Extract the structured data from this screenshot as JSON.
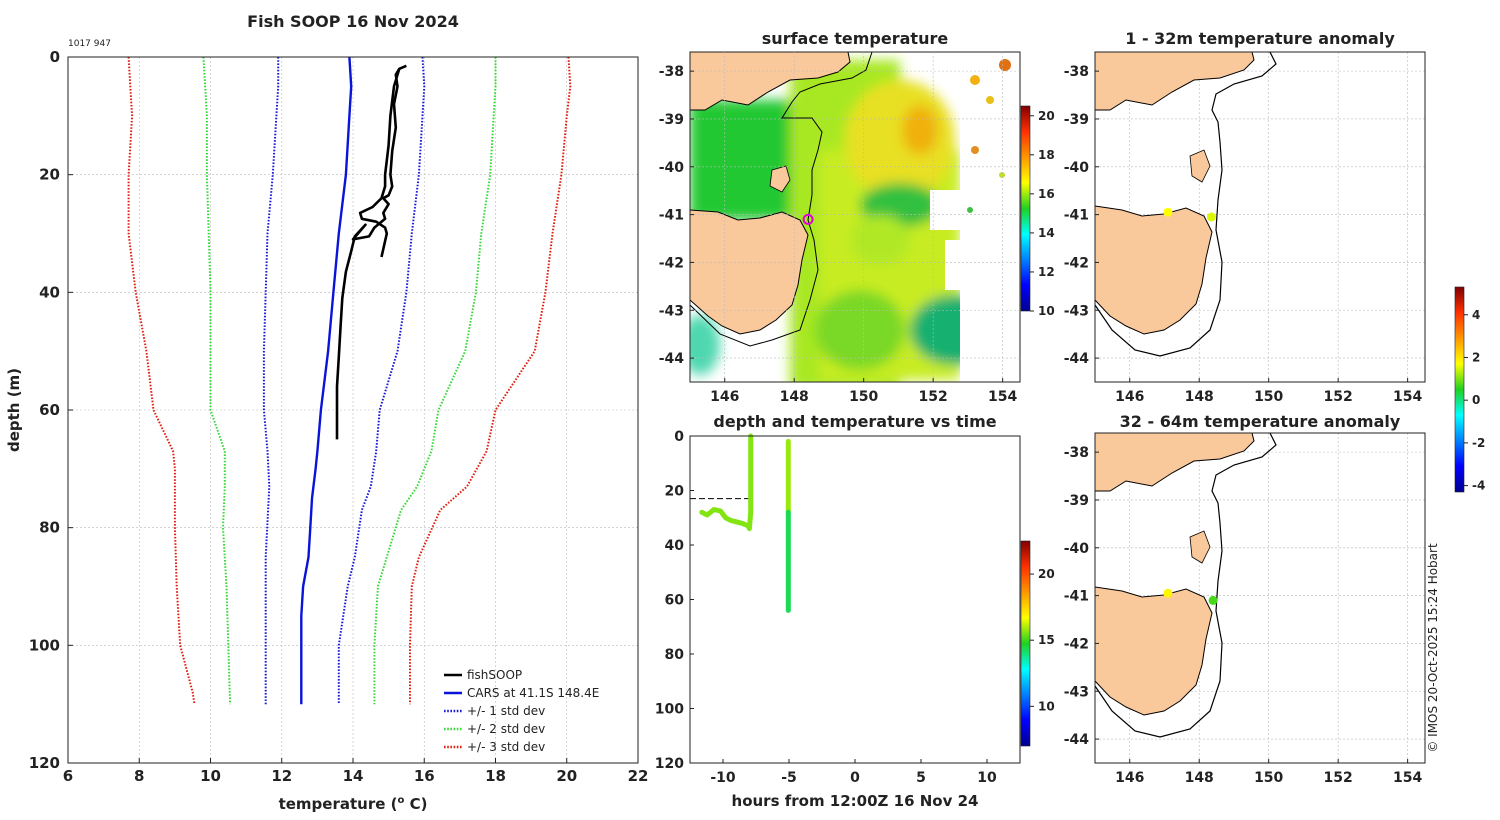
{
  "colors": {
    "land": "#f9c89b",
    "cars": "#0a14d8",
    "std1": "#1a1ad8",
    "std2": "#38d838",
    "std3": "#e02010",
    "fish": "#000000",
    "grid": "#bbbbbb",
    "axis": "#222222"
  },
  "chart_data": [
    {
      "type": "line",
      "id": "profile",
      "title": "Fish SOOP 16 Nov 2024",
      "subtitle": "1017 947",
      "xlabel_pre": "temperature (",
      "xlabel_sup": "o",
      "xlabel_post": " C)",
      "ylabel": "depth (m)",
      "xlim": [
        6,
        22
      ],
      "ylim": [
        0,
        120
      ],
      "y_reversed": true,
      "xticks": [
        6,
        8,
        10,
        12,
        14,
        16,
        18,
        20,
        22
      ],
      "yticks": [
        0,
        20,
        40,
        60,
        80,
        100,
        120
      ],
      "legend": {
        "position": "bottom-right",
        "entries": [
          {
            "label": "fishSOOP",
            "key": "fish",
            "style": "solid"
          },
          {
            "label": "CARS at 41.1S 148.4E",
            "key": "cars",
            "style": "solid"
          },
          {
            "label": "+/- 1 std dev",
            "key": "std1",
            "style": "dotted"
          },
          {
            "label": "+/- 2 std dev",
            "key": "std2",
            "style": "dotted"
          },
          {
            "label": "+/- 3 std dev",
            "key": "std3",
            "style": "dotted"
          }
        ]
      },
      "series": [
        {
          "name": "CARS",
          "key": "cars",
          "style": "solid",
          "x": [
            13.9,
            13.95,
            13.9,
            13.8,
            13.6,
            13.45,
            13.3,
            13.1,
            13.0,
            12.95,
            12.85,
            12.8,
            12.75,
            12.6,
            12.55,
            12.55,
            12.55
          ],
          "y": [
            0,
            5,
            10,
            20,
            30,
            40,
            50,
            60,
            67,
            70,
            75,
            80,
            85,
            90,
            95,
            100,
            110
          ]
        },
        {
          "name": "+1 std",
          "key": "std1",
          "style": "dotted",
          "x": [
            15.95,
            16.0,
            15.95,
            15.85,
            15.65,
            15.5,
            15.25,
            14.75,
            14.65,
            14.5,
            14.25,
            14.05,
            13.85,
            13.6,
            13.6
          ],
          "y": [
            0,
            5,
            10,
            20,
            30,
            40,
            50,
            60,
            67,
            73,
            77,
            85,
            90,
            100,
            110
          ]
        },
        {
          "name": "-1 std",
          "key": "std1",
          "style": "dotted",
          "x": [
            11.9,
            11.9,
            11.85,
            11.75,
            11.6,
            11.55,
            11.5,
            11.5,
            11.6,
            11.65,
            11.55,
            11.55,
            11.55
          ],
          "y": [
            0,
            5,
            10,
            20,
            30,
            40,
            50,
            60,
            67,
            73,
            85,
            100,
            110
          ]
        },
        {
          "name": "+2 std",
          "key": "std2",
          "style": "dotted",
          "x": [
            18.0,
            18.0,
            17.95,
            17.85,
            17.6,
            17.45,
            17.15,
            16.4,
            16.2,
            15.8,
            15.35,
            14.95,
            14.7,
            14.6,
            14.6
          ],
          "y": [
            0,
            5,
            10,
            20,
            30,
            40,
            50,
            60,
            67,
            73,
            77,
            85,
            90,
            100,
            110
          ]
        },
        {
          "name": "-2 std",
          "key": "std2",
          "style": "dotted",
          "x": [
            9.8,
            9.85,
            9.9,
            9.9,
            9.95,
            10.0,
            10.0,
            10.0,
            10.4,
            10.4,
            10.35,
            10.45,
            10.5,
            10.55
          ],
          "y": [
            0,
            5,
            10,
            20,
            30,
            40,
            50,
            60,
            67,
            73,
            80,
            90,
            100,
            110
          ]
        },
        {
          "name": "+3 std",
          "key": "std3",
          "style": "dotted",
          "x": [
            20.05,
            20.1,
            20.0,
            19.85,
            19.6,
            19.4,
            19.1,
            18.0,
            17.75,
            17.2,
            16.45,
            15.85,
            15.65,
            15.6,
            15.6
          ],
          "y": [
            0,
            5,
            10,
            20,
            30,
            40,
            50,
            60,
            67,
            73,
            77,
            85,
            90,
            100,
            110
          ]
        },
        {
          "name": "-3 std",
          "key": "std3",
          "style": "dotted",
          "x": [
            7.7,
            7.75,
            7.8,
            7.7,
            7.7,
            7.9,
            8.2,
            8.4,
            8.95,
            9.0,
            9.0,
            9.05,
            9.15,
            9.5,
            9.55
          ],
          "y": [
            0,
            5,
            10,
            20,
            30,
            40,
            50,
            60,
            67,
            70,
            80,
            90,
            100,
            108,
            110
          ]
        },
        {
          "name": "fishSOOP",
          "key": "fish",
          "style": "solid",
          "x": [
            15.5,
            15.3,
            15.2,
            15.25,
            15.15,
            15.2,
            15.1,
            15.05,
            15.1,
            15.0,
            14.85,
            15.0,
            14.85,
            14.9,
            14.6,
            14.45,
            14.0,
            14.35,
            14.05,
            13.95,
            13.8,
            13.7,
            13.65,
            13.6,
            13.55,
            13.55,
            13.55
          ],
          "y": [
            1.5,
            2,
            3,
            5,
            8,
            12,
            16,
            20,
            22,
            23.5,
            24,
            25,
            26.5,
            27.5,
            29,
            30.5,
            31,
            28.5,
            30.5,
            33,
            36.5,
            41,
            46,
            51,
            56,
            61,
            65
          ]
        },
        {
          "name": "fishSOOP",
          "key": "fish",
          "style": "solid",
          "x": [
            15.3,
            15.15,
            15.05,
            15.0,
            14.9,
            14.9,
            14.8,
            14.55,
            14.2,
            14.25,
            14.65,
            14.9,
            14.95,
            14.8
          ],
          "y": [
            2,
            5,
            10,
            15,
            20,
            22,
            24,
            25.5,
            26.5,
            27.5,
            28,
            29,
            30,
            34
          ]
        }
      ]
    },
    {
      "type": "heatmap",
      "id": "sst",
      "title": "surface temperature",
      "xlim": [
        145,
        154.5
      ],
      "ylim": [
        -44.5,
        -37.6
      ],
      "xticks": [
        146,
        148,
        150,
        152,
        154
      ],
      "yticks": [
        -38,
        -39,
        -40,
        -41,
        -42,
        -43,
        -44
      ],
      "colorbar": {
        "min": 10,
        "max": 20.5,
        "ticks": [
          10,
          12,
          14,
          16,
          18,
          20
        ]
      },
      "marker": {
        "lon": 148.4,
        "lat": -41.1
      }
    },
    {
      "type": "scatter",
      "id": "depthtime",
      "title": "depth and temperature vs time",
      "xlabel": "hours from 12:00Z 16 Nov 24",
      "xlim": [
        -12.5,
        12.5
      ],
      "ylim": [
        0,
        120
      ],
      "y_reversed": true,
      "xticks": [
        -10,
        -5,
        0,
        5,
        10
      ],
      "yticks": [
        0,
        20,
        40,
        60,
        80,
        100,
        120
      ],
      "reference_depth": 23,
      "colorbar": {
        "min": 7,
        "max": 22.5,
        "ticks": [
          10,
          15,
          20
        ]
      },
      "tracks": [
        {
          "temp": 15.6,
          "x": [
            -11.6,
            -11.2,
            -10.7,
            -10.2,
            -9.8,
            -9.4,
            -9.0,
            -8.6,
            -8.3,
            -8.1,
            -8.0,
            -7.9,
            -7.9,
            -7.9
          ],
          "y": [
            28,
            29,
            27,
            27.5,
            30,
            31,
            31.5,
            32,
            32.5,
            33,
            34,
            28,
            10,
            0
          ]
        },
        {
          "temp": 15.8,
          "x": [
            -5.05,
            -5.05,
            -5.05,
            -5.05,
            -5.05
          ],
          "y": [
            2,
            10,
            20,
            27,
            28
          ]
        },
        {
          "temp": 14.3,
          "x": [
            -5.05,
            -5.05,
            -5.05,
            -5.05
          ],
          "y": [
            28,
            40,
            55,
            64
          ]
        }
      ]
    },
    {
      "type": "scatter",
      "id": "anom1",
      "title": "1 - 32m temperature anomaly",
      "xlim": [
        145,
        154.5
      ],
      "ylim": [
        -44.5,
        -37.6
      ],
      "xticks": [
        146,
        148,
        150,
        152,
        154
      ],
      "yticks": [
        -38,
        -39,
        -40,
        -41,
        -42,
        -43,
        -44
      ],
      "points": [
        {
          "lon": 147.1,
          "lat": -40.95,
          "anom": 1.7
        },
        {
          "lon": 148.35,
          "lat": -41.05,
          "anom": 1.5
        }
      ]
    },
    {
      "type": "scatter",
      "id": "anom2",
      "title": "32 - 64m temperature anomaly",
      "xlim": [
        145,
        154.5
      ],
      "ylim": [
        -44.5,
        -37.6
      ],
      "xticks": [
        146,
        148,
        150,
        152,
        154
      ],
      "yticks": [
        -38,
        -39,
        -40,
        -41,
        -42,
        -43,
        -44
      ],
      "points": [
        {
          "lon": 147.1,
          "lat": -40.95,
          "anom": 1.8
        },
        {
          "lon": 148.4,
          "lat": -41.1,
          "anom": 0.7
        }
      ]
    },
    {
      "type": "heatmap",
      "id": "anomcb",
      "colorbar": {
        "min": -4.3,
        "max": 5.3,
        "ticks": [
          -4,
          -2,
          0,
          2,
          4
        ]
      }
    }
  ],
  "credit": "© IMOS 20-Oct-2025 15:24 Hobart"
}
